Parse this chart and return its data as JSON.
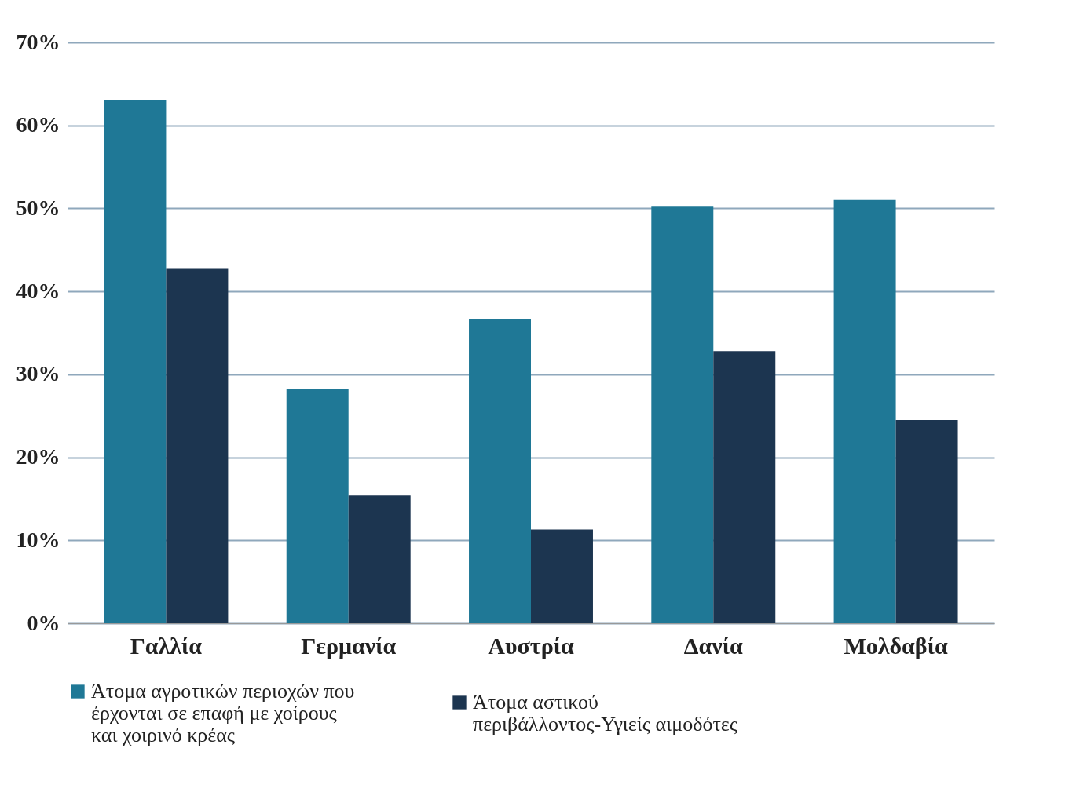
{
  "chart_data": {
    "type": "bar",
    "categories": [
      "Γαλλία",
      "Γερμανία",
      "Αυστρία",
      "Δανία",
      "Μολδαβία"
    ],
    "series": [
      {
        "name": "Άτομα αγροτικών περιοχών που έρχονται σε επαφή με χοίρους και χοιρινό κρέας",
        "color": "#1f7896",
        "values": [
          63,
          28.2,
          36.6,
          50.2,
          51
        ]
      },
      {
        "name": "Άτομα αστικού περιβάλλοντος-Υγιείς αιμοδότες",
        "color": "#1c3550",
        "values": [
          42.7,
          15.4,
          11.3,
          32.8,
          24.5
        ]
      }
    ],
    "ylim": [
      0,
      70
    ],
    "yticks": [
      {
        "value": 0,
        "label": "0%"
      },
      {
        "value": 10,
        "label": "10%"
      },
      {
        "value": 20,
        "label": "20%"
      },
      {
        "value": 30,
        "label": "30%"
      },
      {
        "value": 40,
        "label": "40%"
      },
      {
        "value": 50,
        "label": "50%"
      },
      {
        "value": 60,
        "label": "60%"
      },
      {
        "value": 70,
        "label": "70%"
      }
    ],
    "grid": "y",
    "legend": "bottom"
  }
}
